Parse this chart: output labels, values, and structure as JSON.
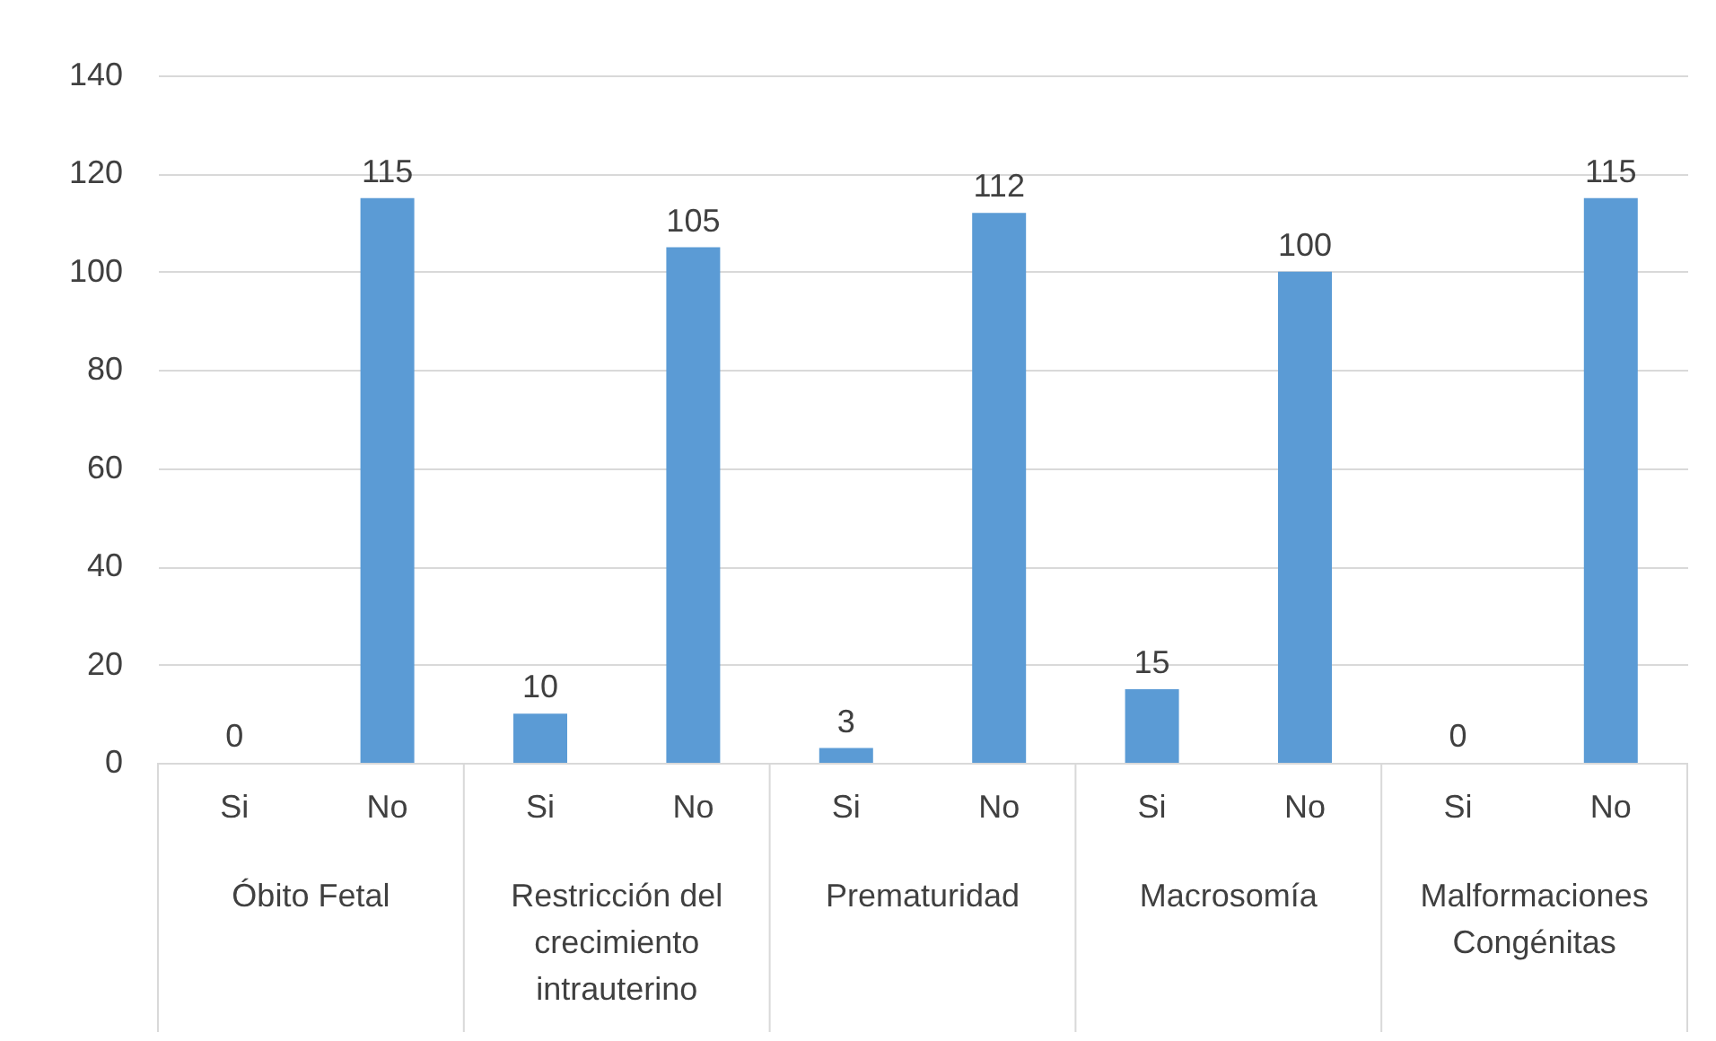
{
  "chart_data": {
    "type": "bar",
    "categories": [
      "Si",
      "No",
      "Si",
      "No",
      "Si",
      "No",
      "Si",
      "No",
      "Si",
      "No"
    ],
    "values": [
      0,
      115,
      10,
      105,
      3,
      112,
      15,
      100,
      0,
      115
    ],
    "color": "#5b9bd5",
    "ylim": [
      0,
      140
    ],
    "yticks": [
      0,
      20,
      40,
      60,
      80,
      100,
      120,
      140
    ],
    "grid": "y",
    "data_labels": true,
    "annotations": [
      "Óbito Fetal",
      "Restricción del crecimiento intrauterino",
      "Prematuridad",
      "Macrosomía",
      "Malformaciones Congénitas"
    ]
  }
}
